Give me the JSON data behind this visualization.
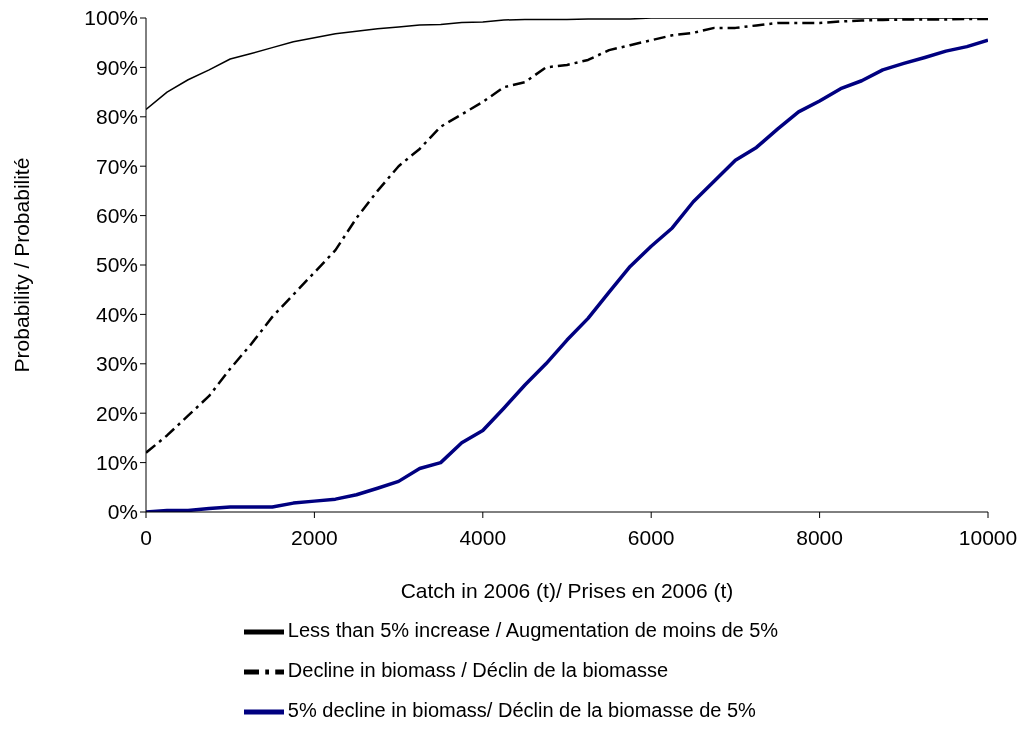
{
  "chart_data": {
    "type": "line",
    "xlabel": "Catch in 2006 (t)/ Prises en 2006 (t)",
    "ylabel": "Probability / Probabilité",
    "x": [
      0,
      250,
      500,
      750,
      1000,
      1250,
      1500,
      1750,
      2000,
      2250,
      2500,
      2750,
      3000,
      3250,
      3500,
      3750,
      4000,
      4250,
      4500,
      4750,
      5000,
      5250,
      5500,
      5750,
      6000,
      6250,
      6500,
      6750,
      7000,
      7250,
      7500,
      7750,
      8000,
      8250,
      8500,
      8750,
      9000,
      9250,
      9500,
      9750,
      10000
    ],
    "series": [
      {
        "name": "Less than 5% increase / Augmentation de moins de 5%",
        "color": "#000000",
        "line_style": "solid",
        "values": [
          81.5,
          85,
          87.5,
          89.5,
          91.7,
          92.8,
          94,
          95.2,
          96,
          96.8,
          97.3,
          97.8,
          98.2,
          98.6,
          98.7,
          99.1,
          99.2,
          99.6,
          99.7,
          99.7,
          99.7,
          99.8,
          99.8,
          99.8,
          100,
          100,
          100,
          100,
          100,
          100,
          100,
          100,
          100,
          100,
          100,
          100,
          100,
          100,
          100,
          100,
          100
        ]
      },
      {
        "name": "Decline in biomass / Déclin de la biomasse",
        "color": "#000000",
        "line_style": "dashed",
        "values": [
          12,
          15.5,
          19.5,
          23.5,
          29,
          34,
          39.5,
          44,
          48.5,
          53,
          59.5,
          65,
          70,
          73.5,
          78,
          80.5,
          83,
          86,
          87,
          90,
          90.5,
          91.5,
          93.5,
          94.5,
          95.5,
          96.5,
          97,
          98,
          98,
          98.5,
          99,
          99,
          99,
          99.3,
          99.5,
          99.6,
          99.7,
          99.7,
          99.7,
          99.8,
          99.8
        ]
      },
      {
        "name": "5% decline in biomass/ Déclin de la biomasse de 5%",
        "color": "#000080",
        "line_style": "solid",
        "values": [
          0,
          0.3,
          0.3,
          0.7,
          1,
          1,
          1,
          1.8,
          2.2,
          2.6,
          3.5,
          4.8,
          6.2,
          8.8,
          10,
          14,
          16.5,
          21,
          25.7,
          30,
          34.8,
          39.2,
          44.5,
          49.7,
          53.8,
          57.5,
          62.8,
          67,
          71.2,
          73.8,
          77.5,
          81,
          83.2,
          85.7,
          87.3,
          89.5,
          90.8,
          92,
          93.3,
          94.2,
          95.5
        ]
      }
    ],
    "xlim": [
      0,
      10000
    ],
    "xticks": [
      0,
      2000,
      4000,
      6000,
      8000,
      10000
    ],
    "ylim": [
      0,
      100
    ],
    "yticks": [
      {
        "value": 0,
        "label": "0%"
      },
      {
        "value": 10,
        "label": "10%"
      },
      {
        "value": 20,
        "label": "20%"
      },
      {
        "value": 30,
        "label": "30%"
      },
      {
        "value": 40,
        "label": "40%"
      },
      {
        "value": 50,
        "label": "50%"
      },
      {
        "value": 60,
        "label": "60%"
      },
      {
        "value": 70,
        "label": "70%"
      },
      {
        "value": 80,
        "label": "80%"
      },
      {
        "value": 90,
        "label": "90%"
      },
      {
        "value": 100,
        "label": "100%"
      }
    ],
    "grid": false,
    "legend": "bottom",
    "marker": "none"
  }
}
